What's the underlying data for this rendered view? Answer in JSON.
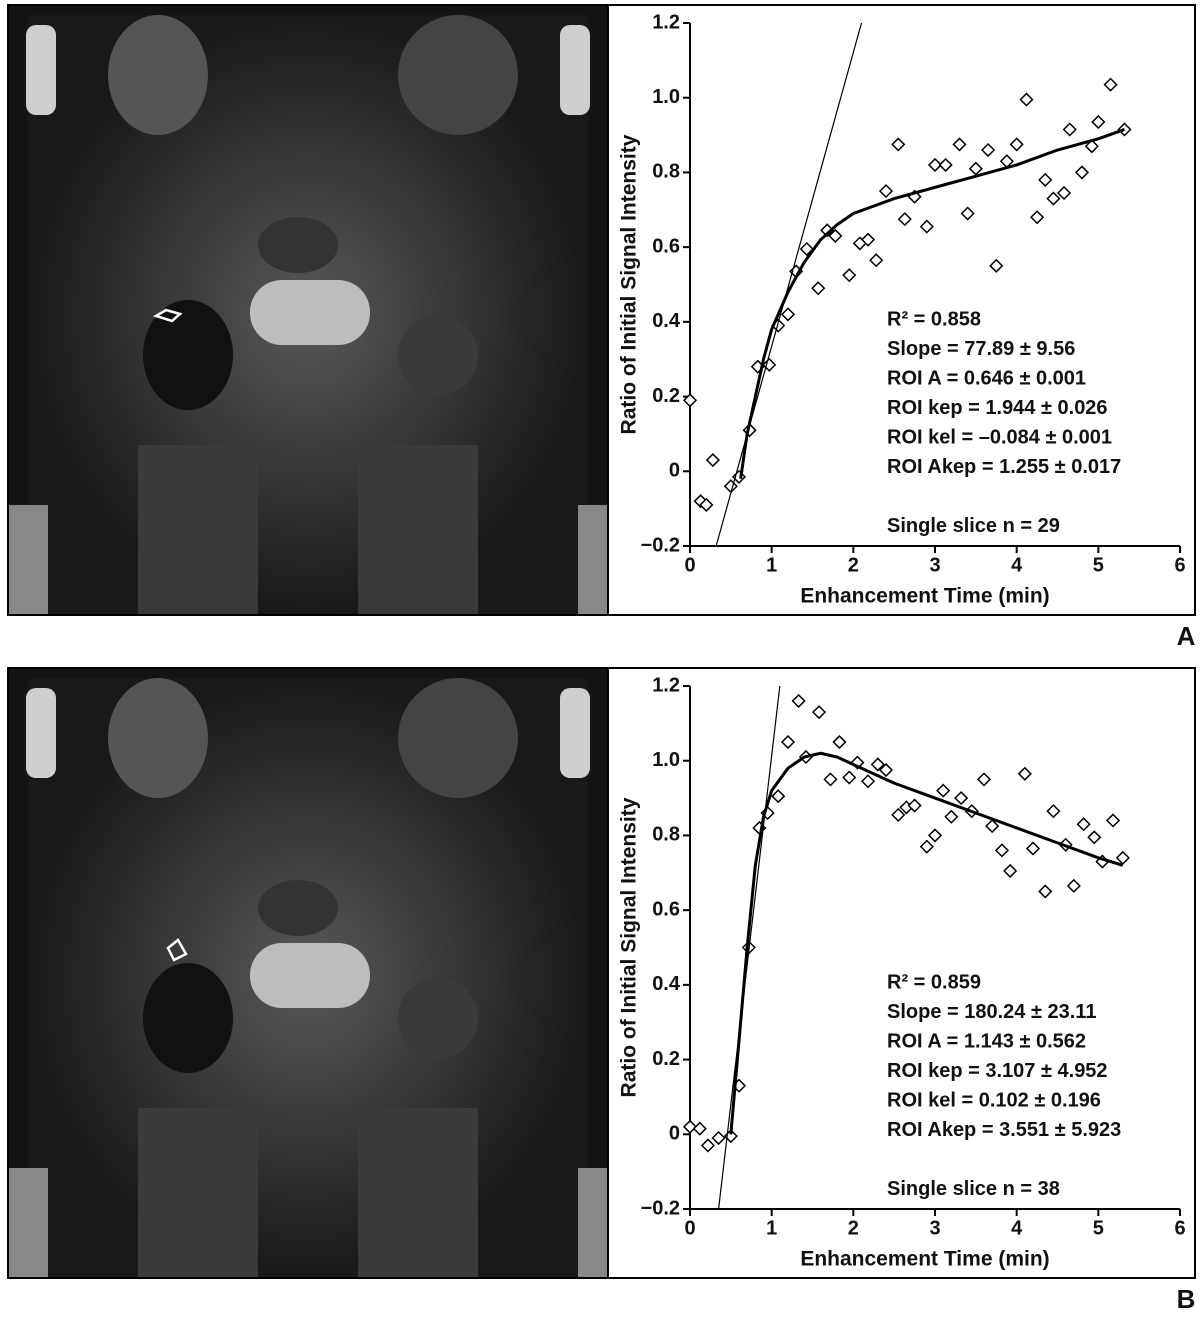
{
  "chart_data": [
    {
      "type": "scatter",
      "panel_label": "A",
      "xlabel": "Enhancement Time (min)",
      "ylabel": "Ratio of Initial Signal Intensity",
      "xlim": [
        0,
        6
      ],
      "ylim": [
        -0.2,
        1.2
      ],
      "xticks": [
        0,
        1,
        2,
        3,
        4,
        5,
        6
      ],
      "yticks": [
        {
          "value": -0.2,
          "label": "−0.2"
        },
        0,
        0.2,
        0.4,
        0.6,
        0.8,
        {
          "value": 1,
          "label": "1.0"
        },
        1.2
      ],
      "annotations": [
        "R² = 0.858",
        "Slope = 77.89 ± 9.56",
        "ROI A = 0.646 ± 0.001",
        "ROI kep = 1.944 ± 0.026",
        "ROI kel = –0.084 ± 0.001",
        "ROI Akep = 1.255 ± 0.017",
        "Single slice n = 29"
      ],
      "series": [
        {
          "type": "scatter",
          "color": "#000000",
          "x": [
            0.0,
            0.13,
            0.2,
            0.28,
            0.5,
            0.6,
            0.73,
            0.83,
            0.97,
            1.08,
            1.2,
            1.3,
            1.43,
            1.57,
            1.68,
            1.78,
            1.95,
            2.08,
            2.18,
            2.28,
            2.4,
            2.55,
            2.63,
            2.75,
            2.9,
            3.0,
            3.13,
            3.3,
            3.4,
            3.5,
            3.65,
            3.75,
            3.88,
            4.0,
            4.12,
            4.25,
            4.35,
            4.45,
            4.58,
            4.65,
            4.8,
            4.92,
            5.0,
            5.15,
            5.32
          ],
          "values": [
            0.19,
            -0.08,
            -0.09,
            0.03,
            -0.04,
            -0.015,
            0.11,
            0.28,
            0.285,
            0.39,
            0.42,
            0.535,
            0.595,
            0.49,
            0.645,
            0.63,
            0.525,
            0.61,
            0.62,
            0.565,
            0.75,
            0.875,
            0.675,
            0.735,
            0.655,
            0.82,
            0.82,
            0.875,
            0.69,
            0.81,
            0.86,
            0.55,
            0.83,
            0.875,
            0.995,
            0.68,
            0.78,
            0.73,
            0.745,
            0.915,
            0.8,
            0.87,
            0.935,
            1.035,
            0.915
          ]
        },
        {
          "type": "line",
          "color": "#000000",
          "line_width": 3,
          "x": [
            0.62,
            0.7,
            0.8,
            0.9,
            1.0,
            1.2,
            1.4,
            1.6,
            1.8,
            2.0,
            2.5,
            3.0,
            3.5,
            4.0,
            4.5,
            5.0,
            5.32
          ],
          "values": [
            -0.02,
            0.1,
            0.2,
            0.3,
            0.38,
            0.48,
            0.56,
            0.62,
            0.66,
            0.69,
            0.73,
            0.76,
            0.79,
            0.82,
            0.86,
            0.89,
            0.915
          ]
        },
        {
          "type": "line",
          "color": "#000000",
          "line_width": 1.2,
          "x": [
            0.32,
            2.1
          ],
          "values": [
            -0.2,
            1.2
          ]
        }
      ]
    },
    {
      "type": "scatter",
      "panel_label": "B",
      "xlabel": "Enhancement Time (min)",
      "ylabel": "Ratio of Initial Signal Intensity",
      "xlim": [
        0,
        6
      ],
      "ylim": [
        -0.2,
        1.2
      ],
      "xticks": [
        0,
        1,
        2,
        3,
        4,
        5,
        6
      ],
      "yticks": [
        {
          "value": -0.2,
          "label": "−0.2"
        },
        0,
        0.2,
        0.4,
        0.6,
        0.8,
        {
          "value": 1,
          "label": "1.0"
        },
        1.2
      ],
      "annotations": [
        "R² = 0.859",
        "Slope = 180.24 ± 23.11",
        "ROI A = 1.143 ± 0.562",
        "ROI kep = 3.107 ± 4.952",
        "ROI kel = 0.102 ± 0.196",
        "ROI Akep = 3.551 ± 5.923",
        "Single slice n = 38"
      ],
      "series": [
        {
          "type": "scatter",
          "color": "#000000",
          "x": [
            0.0,
            0.12,
            0.22,
            0.35,
            0.5,
            0.6,
            0.72,
            0.85,
            0.95,
            1.08,
            1.2,
            1.33,
            1.42,
            1.58,
            1.72,
            1.83,
            1.95,
            2.05,
            2.18,
            2.3,
            2.4,
            2.55,
            2.65,
            2.75,
            2.9,
            3.0,
            3.1,
            3.2,
            3.32,
            3.45,
            3.6,
            3.7,
            3.82,
            3.92,
            4.1,
            4.2,
            4.35,
            4.45,
            4.6,
            4.7,
            4.82,
            4.95,
            5.05,
            5.18,
            5.3
          ],
          "values": [
            0.02,
            0.015,
            -0.03,
            -0.01,
            -0.005,
            0.13,
            0.5,
            0.82,
            0.86,
            0.905,
            1.05,
            1.16,
            1.01,
            1.13,
            0.95,
            1.05,
            0.955,
            0.995,
            0.945,
            0.99,
            0.975,
            0.855,
            0.875,
            0.88,
            0.77,
            0.8,
            0.92,
            0.85,
            0.9,
            0.865,
            0.95,
            0.825,
            0.76,
            0.705,
            0.965,
            0.765,
            0.65,
            0.865,
            0.775,
            0.665,
            0.83,
            0.795,
            0.73,
            0.84,
            0.74
          ]
        },
        {
          "type": "line",
          "color": "#000000",
          "line_width": 3,
          "x": [
            0.5,
            0.6,
            0.7,
            0.8,
            0.9,
            1.0,
            1.2,
            1.4,
            1.6,
            1.8,
            2.0,
            2.5,
            3.0,
            3.5,
            4.0,
            4.5,
            5.0,
            5.3
          ],
          "values": [
            0,
            0.25,
            0.5,
            0.72,
            0.85,
            0.92,
            0.98,
            1.01,
            1.02,
            1.01,
            0.99,
            0.94,
            0.9,
            0.86,
            0.82,
            0.78,
            0.74,
            0.72
          ]
        },
        {
          "type": "line",
          "color": "#000000",
          "line_width": 1.2,
          "x": [
            0.35,
            1.1
          ],
          "values": [
            -0.2,
            1.2
          ]
        }
      ]
    }
  ]
}
